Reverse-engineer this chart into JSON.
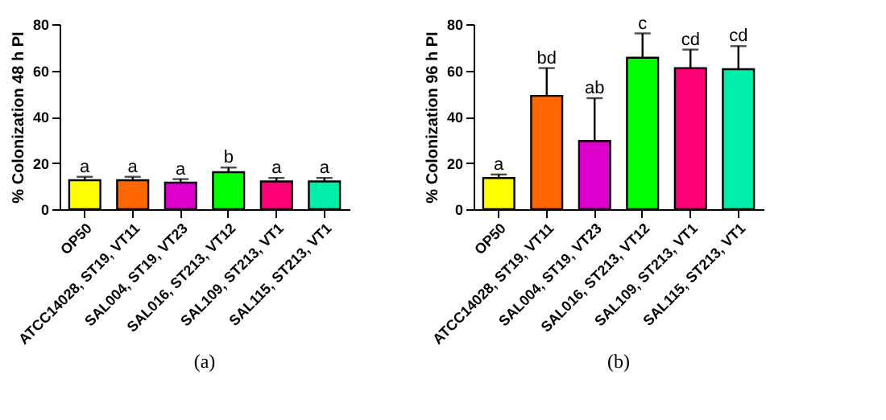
{
  "chart_data": [
    {
      "type": "bar",
      "ylabel": "% Colonization 48 h PI",
      "categories": [
        "OP50",
        "ATCC14028, ST19, VT11",
        "SAL004, ST19, VT23",
        "SAL016, ST213, VT12",
        "SAL109, ST213, VT1",
        "SAL115, ST213, VT1"
      ],
      "values": [
        12.5,
        12.5,
        11.5,
        16,
        12,
        12
      ],
      "errors": [
        [
          12.5,
          14
        ],
        [
          12.5,
          14
        ],
        [
          11.5,
          13
        ],
        [
          16,
          18
        ],
        [
          12,
          13.5
        ],
        [
          12,
          13.5
        ]
      ],
      "colors": [
        "#ffff00",
        "#ff6600",
        "#dd00cc",
        "#00ff00",
        "#ff0077",
        "#00eeaa"
      ],
      "ylim": [
        0,
        80
      ],
      "yticks": [
        0,
        20,
        40,
        60,
        80
      ],
      "grid": false,
      "annotations": [
        {
          "text": "a",
          "x": "OP50",
          "y": 14
        },
        {
          "text": "a",
          "x": "ATCC14028, ST19, VT11",
          "y": 14
        },
        {
          "text": "a",
          "x": "SAL004, ST19, VT23",
          "y": 13
        },
        {
          "text": "b",
          "x": "SAL016, ST213, VT12",
          "y": 18
        },
        {
          "text": "a",
          "x": "SAL109, ST213, VT1",
          "y": 13.5
        },
        {
          "text": "a",
          "x": "SAL115, ST213, VT1",
          "y": 13.5
        },
        "(a)"
      ]
    },
    {
      "type": "bar",
      "ylabel": "% Colonization 96 h PI",
      "categories": [
        "OP50",
        "ATCC14028, ST19, VT11",
        "SAL004, ST19, VT23",
        "SAL016, ST213, VT12",
        "SAL109, ST213, VT1",
        "SAL115, ST213, VT1"
      ],
      "values": [
        13.5,
        49,
        29.5,
        65.5,
        61,
        60.5
      ],
      "errors": [
        [
          13.5,
          15
        ],
        [
          49,
          61
        ],
        [
          29.5,
          48
        ],
        [
          65.5,
          76
        ],
        [
          61,
          69
        ],
        [
          60.5,
          70.5
        ]
      ],
      "colors": [
        "#ffff00",
        "#ff6600",
        "#dd00cc",
        "#00ff00",
        "#ff0077",
        "#00eeaa"
      ],
      "ylim": [
        0,
        80
      ],
      "yticks": [
        0,
        20,
        40,
        60,
        80
      ],
      "grid": false,
      "annotations": [
        {
          "text": "a",
          "x": "OP50",
          "y": 15
        },
        {
          "text": "bd",
          "x": "ATCC14028, ST19, VT11",
          "y": 61
        },
        {
          "text": "ab",
          "x": "SAL004, ST19, VT23",
          "y": 48
        },
        {
          "text": "c",
          "x": "SAL016, ST213, VT12",
          "y": 76
        },
        {
          "text": "cd",
          "x": "SAL109, ST213, VT1",
          "y": 69
        },
        {
          "text": "cd",
          "x": "SAL115, ST213, VT1",
          "y": 70.5
        },
        "(b)"
      ]
    }
  ]
}
